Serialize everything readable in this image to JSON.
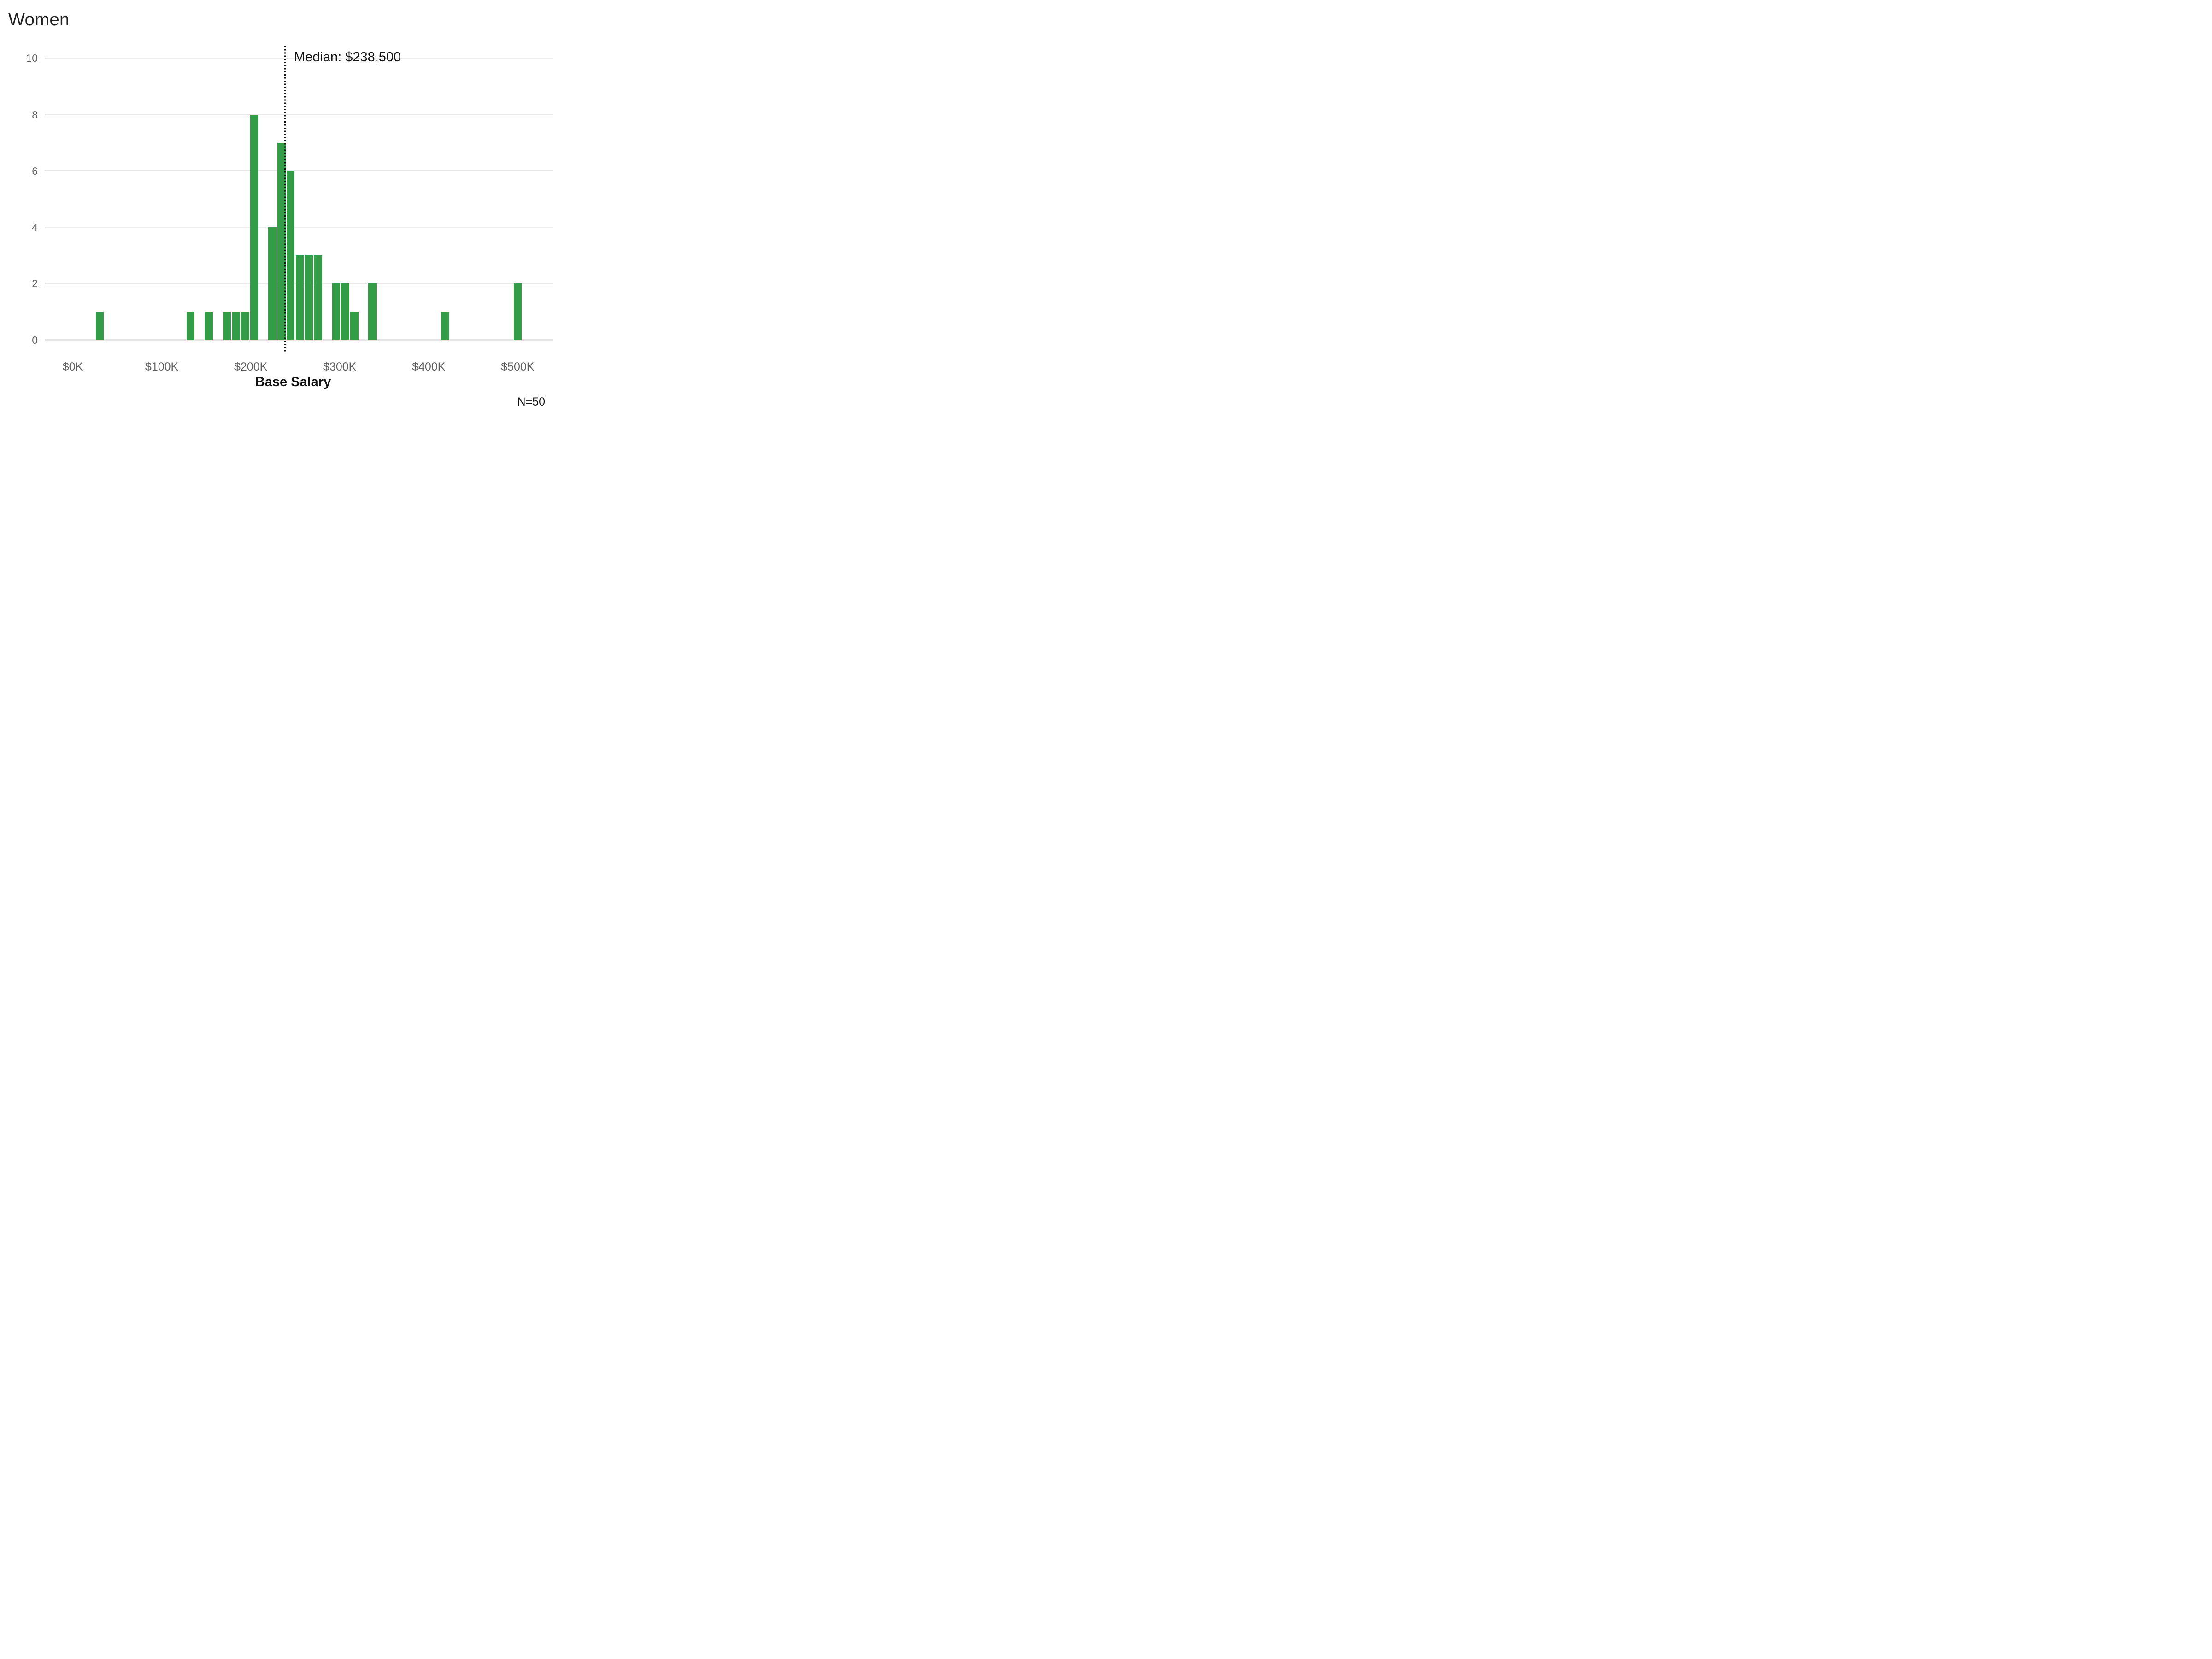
{
  "title": "Women",
  "median_annotation": {
    "label": "Median: $238,500",
    "value_thousands": 238.5
  },
  "sample_size_label": "N=50",
  "colors": {
    "bar": "#339C46",
    "gridline": "#E9E9E9",
    "axis_line": "#E4E4E4",
    "tick_label": "#5F5F5F",
    "text": "#141414",
    "median_line": "#141414",
    "background": "#FFFFFF"
  },
  "chart_data": {
    "type": "bar",
    "subtype": "histogram",
    "title": "Women",
    "xlabel": "Base Salary",
    "ylabel": "",
    "x_tick_labels": [
      "$0K",
      "$100K",
      "$200K",
      "$300K",
      "$400K",
      "$500K"
    ],
    "x_tick_values_thousands": [
      0,
      100,
      200,
      300,
      400,
      500
    ],
    "y_ticks": [
      0,
      2,
      4,
      6,
      8,
      10
    ],
    "ylim": [
      0,
      10
    ],
    "xlim_thousands": [
      -31,
      540
    ],
    "grid": "horizontal",
    "legend": "none",
    "bin_width_thousands": 10.2,
    "bin_centers_thousands": [
      30.2,
      132.4,
      152.8,
      173.3,
      183.5,
      193.7,
      203.9,
      224.4,
      234.6,
      244.8,
      255.0,
      265.2,
      275.5,
      295.9,
      306.1,
      316.4,
      336.8,
      418.5,
      500.2
    ],
    "counts": [
      1,
      1,
      1,
      1,
      1,
      1,
      8,
      4,
      7,
      6,
      3,
      3,
      3,
      2,
      2,
      1,
      2,
      1,
      2
    ],
    "median_thousands": 238.5,
    "n": 50
  }
}
